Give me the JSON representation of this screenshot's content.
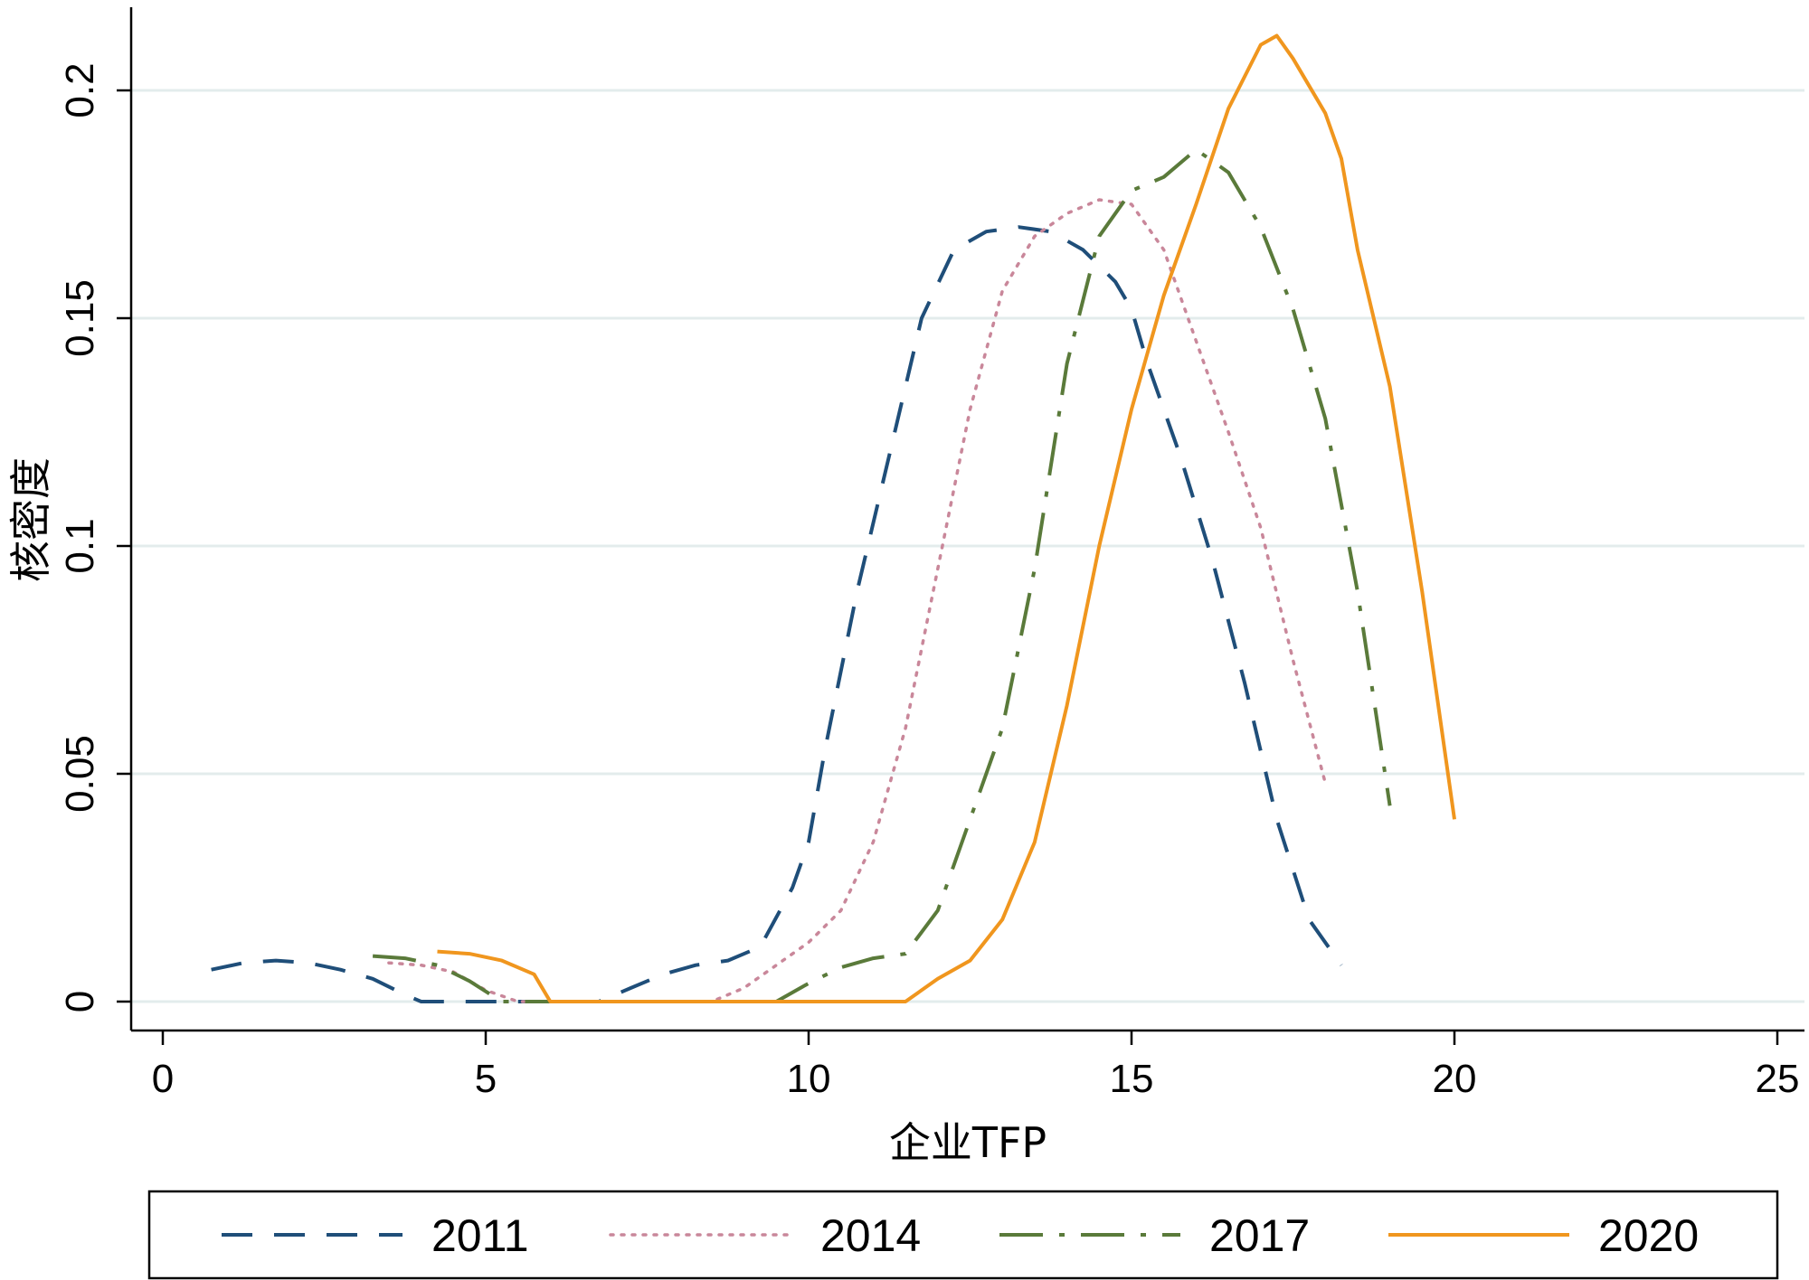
{
  "chart_data": {
    "type": "line",
    "title": "",
    "xlabel": "企业TFP",
    "ylabel": "核密度",
    "xlim": [
      0,
      25
    ],
    "ylim": [
      0,
      0.22
    ],
    "x_ticks": [
      0,
      5,
      10,
      15,
      20,
      25
    ],
    "x_tick_labels": [
      "0",
      "5",
      "10",
      "15",
      "20",
      "25"
    ],
    "y_ticks": [
      0,
      0.05,
      0.1,
      0.15,
      0.2
    ],
    "y_tick_labels": [
      "0",
      "0.05",
      "0.1",
      "0.15",
      "0.2"
    ],
    "grid": "horizontal",
    "legend_position": "bottom",
    "series": [
      {
        "name": "2011",
        "color": "#1f4e79",
        "style": "dashed",
        "points": [
          [
            0.75,
            0.007
          ],
          [
            1.25,
            0.0085
          ],
          [
            1.75,
            0.009
          ],
          [
            2.25,
            0.0085
          ],
          [
            2.75,
            0.007
          ],
          [
            3.25,
            0.005
          ],
          [
            3.75,
            0.0015
          ],
          [
            4.0,
            0.0
          ],
          [
            5.0,
            0.0
          ],
          [
            6.0,
            0.0
          ],
          [
            6.75,
            0.0
          ],
          [
            7.25,
            0.003
          ],
          [
            7.75,
            0.006
          ],
          [
            8.25,
            0.008
          ],
          [
            8.75,
            0.009
          ],
          [
            9.25,
            0.012
          ],
          [
            9.75,
            0.025
          ],
          [
            10.0,
            0.035
          ],
          [
            10.25,
            0.055
          ],
          [
            10.75,
            0.09
          ],
          [
            11.25,
            0.12
          ],
          [
            11.75,
            0.15
          ],
          [
            12.25,
            0.165
          ],
          [
            12.75,
            0.169
          ],
          [
            13.25,
            0.17
          ],
          [
            13.75,
            0.169
          ],
          [
            14.25,
            0.165
          ],
          [
            14.75,
            0.158
          ],
          [
            15.0,
            0.152
          ],
          [
            15.25,
            0.14
          ],
          [
            15.75,
            0.12
          ],
          [
            16.25,
            0.097
          ],
          [
            16.75,
            0.07
          ],
          [
            17.25,
            0.04
          ],
          [
            17.75,
            0.018
          ],
          [
            18.25,
            0.008
          ]
        ]
      },
      {
        "name": "2014",
        "color": "#c9879a",
        "style": "dotted",
        "points": [
          [
            3.5,
            0.0085
          ],
          [
            4.0,
            0.008
          ],
          [
            4.5,
            0.0065
          ],
          [
            5.0,
            0.0025
          ],
          [
            5.5,
            0.0
          ],
          [
            6.0,
            0.0
          ],
          [
            7.0,
            0.0
          ],
          [
            8.0,
            0.0
          ],
          [
            8.5,
            0.0
          ],
          [
            9.0,
            0.003
          ],
          [
            9.5,
            0.008
          ],
          [
            10.0,
            0.013
          ],
          [
            10.5,
            0.02
          ],
          [
            11.0,
            0.035
          ],
          [
            11.5,
            0.06
          ],
          [
            12.0,
            0.095
          ],
          [
            12.5,
            0.13
          ],
          [
            13.0,
            0.156
          ],
          [
            13.5,
            0.168
          ],
          [
            14.0,
            0.173
          ],
          [
            14.5,
            0.176
          ],
          [
            15.0,
            0.175
          ],
          [
            15.5,
            0.165
          ],
          [
            16.0,
            0.145
          ],
          [
            16.5,
            0.125
          ],
          [
            17.0,
            0.104
          ],
          [
            17.5,
            0.075
          ],
          [
            18.0,
            0.048
          ]
        ]
      },
      {
        "name": "2017",
        "color": "#5a7a3a",
        "style": "dash-dot",
        "points": [
          [
            3.25,
            0.01
          ],
          [
            3.75,
            0.0095
          ],
          [
            4.25,
            0.008
          ],
          [
            4.75,
            0.0045
          ],
          [
            5.25,
            0.0
          ],
          [
            6.0,
            0.0
          ],
          [
            7.0,
            0.0
          ],
          [
            8.0,
            0.0
          ],
          [
            9.0,
            0.0
          ],
          [
            9.5,
            0.0
          ],
          [
            10.0,
            0.004
          ],
          [
            10.5,
            0.0075
          ],
          [
            11.0,
            0.0095
          ],
          [
            11.5,
            0.0105
          ],
          [
            12.0,
            0.02
          ],
          [
            12.5,
            0.04
          ],
          [
            13.0,
            0.06
          ],
          [
            13.5,
            0.095
          ],
          [
            14.0,
            0.14
          ],
          [
            14.5,
            0.168
          ],
          [
            15.0,
            0.178
          ],
          [
            15.5,
            0.181
          ],
          [
            16.0,
            0.187
          ],
          [
            16.5,
            0.182
          ],
          [
            17.0,
            0.17
          ],
          [
            17.5,
            0.152
          ],
          [
            18.0,
            0.128
          ],
          [
            18.5,
            0.09
          ],
          [
            19.0,
            0.043
          ]
        ]
      },
      {
        "name": "2020",
        "color": "#f0961e",
        "style": "solid",
        "points": [
          [
            4.25,
            0.011
          ],
          [
            4.75,
            0.0105
          ],
          [
            5.25,
            0.009
          ],
          [
            5.75,
            0.006
          ],
          [
            6.0,
            0.0
          ],
          [
            7.0,
            0.0
          ],
          [
            8.0,
            0.0
          ],
          [
            9.0,
            0.0
          ],
          [
            10.0,
            0.0
          ],
          [
            11.0,
            0.0
          ],
          [
            11.5,
            0.0
          ],
          [
            12.0,
            0.005
          ],
          [
            12.5,
            0.009
          ],
          [
            13.0,
            0.018
          ],
          [
            13.5,
            0.035
          ],
          [
            14.0,
            0.065
          ],
          [
            14.5,
            0.1
          ],
          [
            15.0,
            0.13
          ],
          [
            15.5,
            0.155
          ],
          [
            16.0,
            0.175
          ],
          [
            16.5,
            0.196
          ],
          [
            17.0,
            0.21
          ],
          [
            17.25,
            0.212
          ],
          [
            17.5,
            0.207
          ],
          [
            18.0,
            0.195
          ],
          [
            18.25,
            0.185
          ],
          [
            18.5,
            0.165
          ],
          [
            19.0,
            0.135
          ],
          [
            19.5,
            0.09
          ],
          [
            20.0,
            0.04
          ]
        ]
      }
    ]
  }
}
